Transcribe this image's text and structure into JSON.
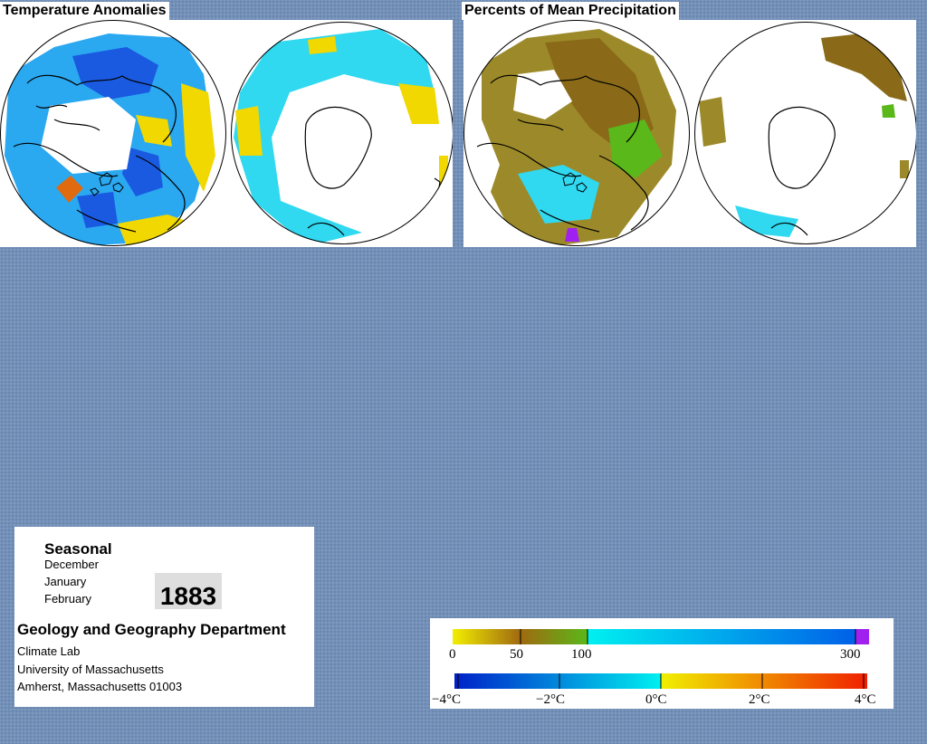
{
  "titles": {
    "temperature": "Temperature Anomalies",
    "precipitation": "Percents of Mean Precipitation"
  },
  "info": {
    "season": "Seasonal",
    "months": [
      "December",
      "January",
      "February"
    ],
    "year": "1883",
    "department": "Geology and Geography Department",
    "lines": [
      "Climate Lab",
      "University of Massachusetts",
      "Amherst, Massachusetts 01003"
    ]
  },
  "legend": {
    "precipitation": {
      "stops": [
        {
          "value": 0,
          "color": "#f2ee00"
        },
        {
          "value": 50,
          "color": "#a06a10"
        },
        {
          "value": 100,
          "color": "#5ab81a"
        },
        {
          "value": 100,
          "color": "#00f0f0"
        },
        {
          "value": 300,
          "color": "#0060e8"
        }
      ],
      "overflow_color": "#a020f0",
      "labels": [
        "0",
        "50",
        "100",
        "300"
      ]
    },
    "temperature": {
      "stops": [
        {
          "value": -4,
          "color": "#0020c8"
        },
        {
          "value": 0,
          "color": "#00f0f0"
        },
        {
          "value": 0,
          "color": "#f0f000"
        },
        {
          "value": 4,
          "color": "#f02000"
        }
      ],
      "labels": [
        "−4°C",
        "−2°C",
        "0°C",
        "2°C",
        "4°C"
      ]
    }
  },
  "colors": {
    "background": "#7390b8",
    "temp_cold": "#1a5ae0",
    "temp_cool": "#2aa8f0",
    "temp_mild": "#30d8f0",
    "temp_warm": "#f0d800",
    "temp_hot": "#e06a10",
    "precip_dry": "#9c8a2a",
    "precip_brown": "#8a6a18",
    "precip_green": "#5ab81a",
    "precip_wet": "#30d8f0",
    "precip_max": "#a020f0"
  }
}
